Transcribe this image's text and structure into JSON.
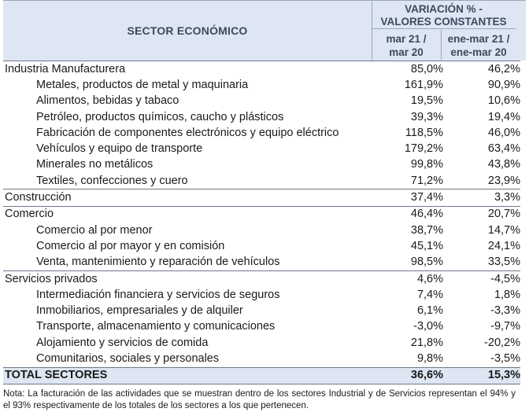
{
  "header": {
    "sector": "SECTOR ECONÓMICO",
    "variation_line1": "VARIACIÓN % -",
    "variation_line2": "VALORES CONSTANTES",
    "col1_line1": "mar 21 /",
    "col1_line2": "mar 20",
    "col2_line1": "ene-mar 21 /",
    "col2_line2": "ene-mar 20"
  },
  "rows": [
    {
      "type": "main",
      "label": "Industria Manufacturera",
      "v1": "85,0%",
      "v2": "46,2%"
    },
    {
      "type": "sub",
      "label": "Metales, productos de metal y maquinaria",
      "v1": "161,9%",
      "v2": "90,9%"
    },
    {
      "type": "sub",
      "label": "Alimentos, bebidas y tabaco",
      "v1": "19,5%",
      "v2": "10,6%"
    },
    {
      "type": "sub",
      "label": "Petróleo, productos químicos, caucho y plásticos",
      "v1": "39,3%",
      "v2": "19,4%"
    },
    {
      "type": "sub",
      "label": "Fabricación de componentes electrónicos y equipo eléctrico",
      "v1": "118,5%",
      "v2": "46,0%"
    },
    {
      "type": "sub",
      "label": "Vehículos y equipo de transporte",
      "v1": "179,2%",
      "v2": "63,4%"
    },
    {
      "type": "sub",
      "label": "Minerales no metálicos",
      "v1": "99,8%",
      "v2": "43,8%"
    },
    {
      "type": "sub",
      "label": "Textiles, confecciones y cuero",
      "v1": "71,2%",
      "v2": "23,9%"
    },
    {
      "type": "main",
      "label": "Construcción",
      "v1": "37,4%",
      "v2": "3,3%"
    },
    {
      "type": "main",
      "label": "Comercio",
      "v1": "46,4%",
      "v2": "20,7%"
    },
    {
      "type": "sub",
      "label": "Comercio al por menor",
      "v1": "38,7%",
      "v2": "14,7%"
    },
    {
      "type": "sub",
      "label": "Comercio al por mayor y en comisión",
      "v1": "45,1%",
      "v2": "24,1%"
    },
    {
      "type": "sub",
      "label": "Venta, mantenimiento y reparación de vehículos",
      "v1": "98,5%",
      "v2": "33,5%"
    },
    {
      "type": "main",
      "label": "Servicios privados",
      "v1": "4,6%",
      "v2": "-4,5%"
    },
    {
      "type": "sub",
      "label": "Intermediación financiera y servicios de seguros",
      "v1": "7,4%",
      "v2": "1,8%"
    },
    {
      "type": "sub",
      "label": "Inmobiliarios, empresariales y de alquiler",
      "v1": "6,1%",
      "v2": "-3,3%"
    },
    {
      "type": "sub",
      "label": "Transporte, almacenamiento y comunicaciones",
      "v1": "-3,0%",
      "v2": "-9,7%"
    },
    {
      "type": "sub",
      "label": "Alojamiento y servicios de comida",
      "v1": "21,8%",
      "v2": "-20,2%"
    },
    {
      "type": "sub",
      "label": "Comunitarios, sociales y personales",
      "v1": "9,8%",
      "v2": "-3,5%"
    },
    {
      "type": "total",
      "label": "TOTAL SECTORES",
      "v1": "36,6%",
      "v2": "15,3%"
    }
  ],
  "note": "Nota: La facturación de las actividades que se muestran dentro de los sectores Industrial y de Servicios representan el 94% y el 93% respectivamente de los totales de los sectores a los que pertenecen."
}
